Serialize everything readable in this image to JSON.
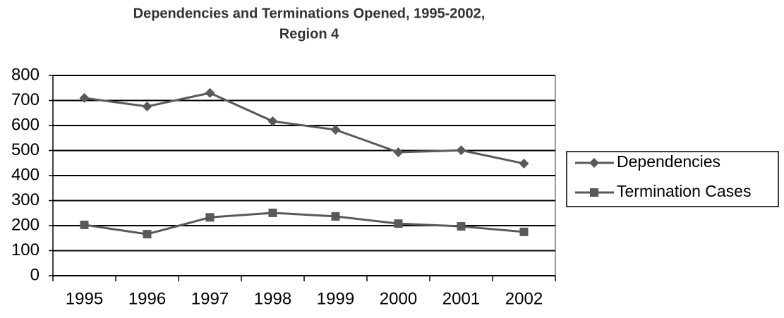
{
  "chart_data": {
    "type": "line",
    "title": [
      "Dependencies and Terminations Opened, 1995-2002,",
      "Region 4"
    ],
    "categories": [
      "1995",
      "1996",
      "1997",
      "1998",
      "1999",
      "2000",
      "2001",
      "2002"
    ],
    "series": [
      {
        "name": "Dependencies",
        "color": "#595959",
        "marker": "diamond",
        "values": [
          710,
          676,
          730,
          617,
          583,
          493,
          501,
          448
        ]
      },
      {
        "name": "Termination Cases",
        "color": "#595959",
        "marker": "square",
        "values": [
          203,
          166,
          233,
          251,
          237,
          208,
          197,
          175
        ]
      }
    ],
    "ylim": [
      0,
      800
    ],
    "yticks": [
      0,
      100,
      200,
      300,
      400,
      500,
      600,
      700,
      800
    ],
    "grid": true,
    "legend": "right"
  }
}
